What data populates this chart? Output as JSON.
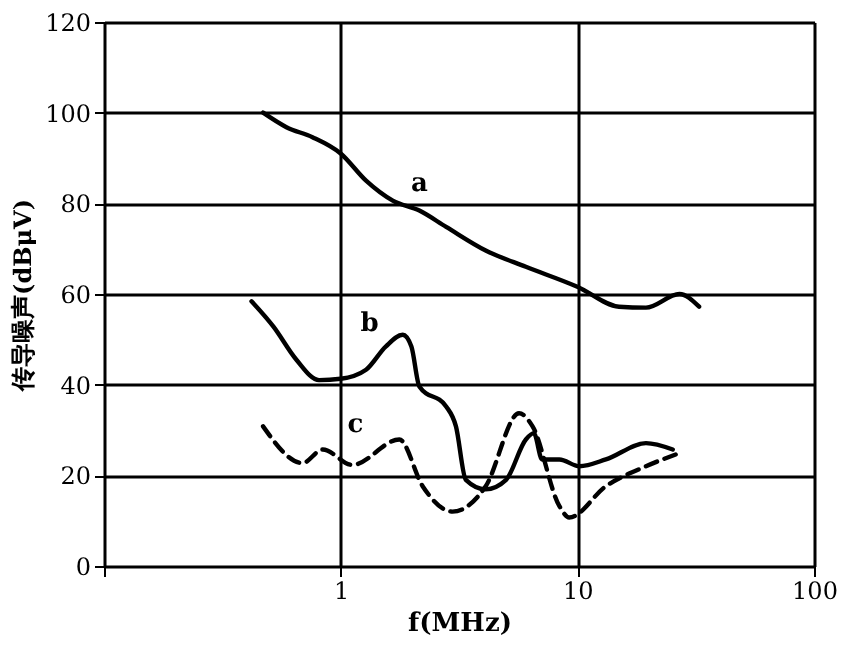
{
  "chart_data": {
    "type": "line",
    "xlabel": "f(MHz)",
    "ylabel": "传导噪声(dBμV)",
    "log": "x",
    "xlim": [
      0.1,
      100
    ],
    "xticks": [
      {
        "value": 0.1,
        "label": null
      },
      1,
      10,
      100
    ],
    "ylim": [
      0,
      120
    ],
    "yticks": [
      0,
      20,
      40,
      60,
      80,
      100,
      120
    ],
    "grid": true,
    "series": [
      {
        "name": "a",
        "color": "#000000",
        "line_style": "solid",
        "x": [
          0.47,
          0.59,
          0.76,
          1.0,
          1.28,
          1.66,
          2.15,
          2.79,
          4.1,
          6.06,
          10,
          15,
          19.5,
          27,
          32.7
        ],
        "values": [
          100,
          96.8,
          94.6,
          91,
          85,
          80.6,
          78.4,
          74.8,
          69.6,
          66,
          61.6,
          57.2,
          57,
          60,
          57.2
        ]
      },
      {
        "name": "b",
        "color": "#000000",
        "line_style": "solid",
        "x": [
          0.42,
          0.52,
          0.65,
          0.81,
          1.0,
          1.28,
          1.55,
          1.83,
          1.99,
          2.15,
          2.79,
          3.07,
          3.38,
          4.1,
          5.0,
          6.06,
          6.55,
          7.1,
          8.4,
          10.2,
          13.2,
          19.5,
          25.3
        ],
        "values": [
          58.4,
          52.8,
          45.5,
          41,
          41.3,
          43.3,
          48.4,
          51,
          48.4,
          39.6,
          35.2,
          30.8,
          19,
          16.9,
          19,
          27.9,
          29.3,
          23.5,
          23.5,
          22,
          23.5,
          27.1,
          25.7
        ]
      },
      {
        "name": "c",
        "color": "#000000",
        "line_style": "dashed",
        "x": [
          0.47,
          0.69,
          0.84,
          1.12,
          1.77,
          2.22,
          2.97,
          4.1,
          5.67,
          6.47,
          8.4,
          9.24,
          13.2,
          19.5,
          27
        ],
        "values": [
          30.8,
          22.7,
          25.7,
          22.3,
          27.9,
          17.6,
          12,
          17.6,
          33.7,
          30.8,
          13.2,
          10.7,
          17.6,
          22,
          24.9
        ]
      }
    ]
  }
}
